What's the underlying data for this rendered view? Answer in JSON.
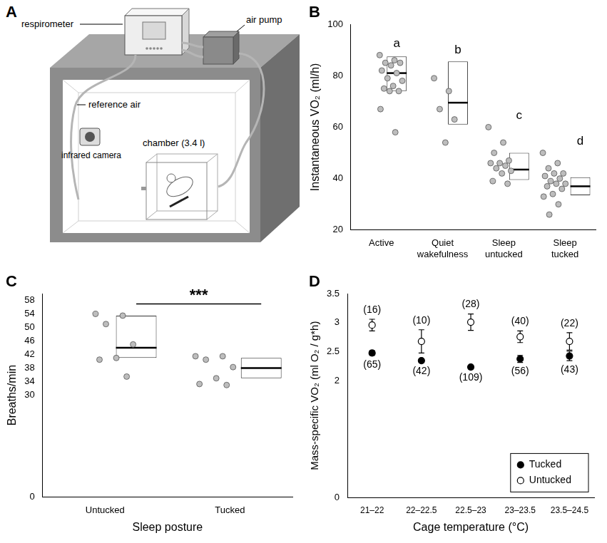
{
  "diagram": {
    "panel": "A",
    "labels": {
      "respirometer": "respirometer",
      "pump": "air pump",
      "reference": "reference air",
      "camera": "infrared camera",
      "chamber": "chamber (3.4 l)"
    }
  },
  "chart_data": [
    {
      "panel": "B",
      "type": "box",
      "ylabel": "Instantaneous VO₂ (ml/h)",
      "categories": [
        "Active",
        "Quiet wakefulness",
        "Sleep untucked",
        "Sleep tucked"
      ],
      "ylim": [
        20,
        100
      ],
      "yticks": [
        20,
        40,
        60,
        80,
        100
      ],
      "grid": false,
      "q1": [
        74,
        61,
        39.5,
        33.5
      ],
      "median": [
        81,
        69.5,
        43.5,
        37
      ],
      "q3": [
        87.5,
        85.5,
        50,
        40.5
      ],
      "points": [
        [
          88,
          86,
          85,
          85,
          84,
          82,
          81,
          79,
          78,
          76,
          75,
          74,
          74,
          67,
          58
        ],
        [
          79,
          74,
          67,
          63,
          54
        ],
        [
          60,
          54,
          50,
          47,
          46,
          46,
          45,
          44,
          43,
          42,
          39,
          38
        ],
        [
          50,
          46,
          44,
          42,
          42,
          41,
          40,
          39,
          38,
          38,
          37,
          36,
          34,
          33,
          30,
          26
        ]
      ],
      "group_labels": [
        "a",
        "b",
        "c",
        "d"
      ]
    },
    {
      "panel": "C",
      "type": "box",
      "xlabel": "Sleep posture",
      "ylabel": "Breaths/min",
      "categories": [
        "Untucked",
        "Tucked"
      ],
      "ylim": [
        0,
        60
      ],
      "yticks": [
        0,
        30,
        34,
        38,
        42,
        46,
        50,
        54,
        58
      ],
      "grid": false,
      "q1": [
        41,
        35
      ],
      "median": [
        44,
        38
      ],
      "q3": [
        53.5,
        41
      ],
      "points": [
        [
          54,
          53.5,
          51,
          45,
          41,
          40.5,
          35.5
        ],
        [
          41.5,
          41.5,
          40.5,
          38.3,
          35,
          33.3,
          33
        ]
      ],
      "significance": "***"
    },
    {
      "panel": "D",
      "type": "scatter",
      "xlabel": "Cage temperature (°C)",
      "ylabel": "Mass-specific VO₂ (ml O₂ / g*h)",
      "categories": [
        "21–22",
        "22–22.5",
        "22.5–23",
        "23–23.5",
        "23.5–24.5"
      ],
      "ylim": [
        0,
        3.5
      ],
      "yticks": [
        0,
        2,
        2.5,
        3,
        3.5
      ],
      "grid": false,
      "legend": "lower right",
      "series": [
        {
          "name": "Tucked",
          "color": "#000000",
          "marker": "circle",
          "values": [
            2.48,
            2.35,
            2.24,
            2.38,
            2.43
          ],
          "errors": [
            0.04,
            0.03,
            0.03,
            0.06,
            0.08
          ],
          "sample_sizes": [
            "(65)",
            "(42)",
            "(109)",
            "(56)",
            "(43)"
          ]
        },
        {
          "name": "Untucked",
          "color": "#000000",
          "marker": "open_circle",
          "values": [
            2.96,
            2.68,
            3.01,
            2.76,
            2.68
          ],
          "errors": [
            0.1,
            0.2,
            0.14,
            0.1,
            0.15
          ],
          "sample_sizes": [
            "(16)",
            "(10)",
            "(28)",
            "(40)",
            "(22)"
          ]
        }
      ]
    }
  ]
}
